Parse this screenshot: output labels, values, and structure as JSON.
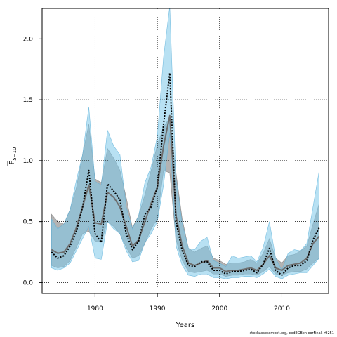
{
  "chart_data": {
    "type": "line",
    "xlabel": "Years",
    "ylabel": "F̄ 5−10",
    "ylabel_main": "F",
    "ylabel_sub": "5−10",
    "xlim": [
      1971.5,
      2017.5
    ],
    "ylim": [
      -0.09,
      2.25
    ],
    "xticks": [
      1980,
      1990,
      2000,
      2010
    ],
    "yticks": [
      0.0,
      0.5,
      1.0,
      1.5,
      2.0
    ],
    "ytick_labels": [
      "0.0",
      "0.5",
      "1.0",
      "1.5",
      "2.0"
    ],
    "grid": true,
    "colors": {
      "gray_band": "#9a9a9a",
      "gray_line": "#6e6e6e",
      "blue_band": "#7ec8ea",
      "dotted_line": "#000000"
    },
    "x": [
      1973,
      1974,
      1975,
      1976,
      1977,
      1978,
      1979,
      1980,
      1981,
      1982,
      1983,
      1984,
      1985,
      1986,
      1987,
      1988,
      1989,
      1990,
      1991,
      1992,
      1993,
      1994,
      1995,
      1996,
      1997,
      1998,
      1999,
      2000,
      2001,
      2002,
      2003,
      2004,
      2005,
      2006,
      2007,
      2008,
      2009,
      2010,
      2011,
      2012,
      2013,
      2014,
      2015,
      2016
    ],
    "series": [
      {
        "style": "gray-band-with-solid-line",
        "values": [
          0.27,
          0.24,
          0.25,
          0.32,
          0.45,
          0.62,
          0.8,
          0.49,
          0.48,
          0.74,
          0.7,
          0.62,
          0.46,
          0.3,
          0.35,
          0.5,
          0.65,
          0.78,
          1.12,
          1.37,
          0.55,
          0.3,
          0.16,
          0.14,
          0.16,
          0.18,
          0.12,
          0.12,
          0.09,
          0.1,
          0.1,
          0.11,
          0.12,
          0.1,
          0.15,
          0.22,
          0.12,
          0.1,
          0.14,
          0.15,
          0.16,
          0.2,
          0.32,
          0.38
        ],
        "lower": [
          0.14,
          0.12,
          0.13,
          0.18,
          0.29,
          0.4,
          0.42,
          0.34,
          0.33,
          0.5,
          0.46,
          0.4,
          0.29,
          0.2,
          0.22,
          0.32,
          0.44,
          0.52,
          0.92,
          0.9,
          0.35,
          0.18,
          0.09,
          0.08,
          0.09,
          0.1,
          0.07,
          0.07,
          0.05,
          0.06,
          0.06,
          0.07,
          0.07,
          0.06,
          0.09,
          0.13,
          0.07,
          0.06,
          0.08,
          0.09,
          0.09,
          0.11,
          0.16,
          0.2
        ],
        "upper": [
          0.56,
          0.5,
          0.48,
          0.6,
          0.78,
          1.05,
          1.3,
          0.85,
          0.82,
          1.1,
          1.02,
          0.92,
          0.7,
          0.45,
          0.55,
          0.72,
          0.92,
          1.13,
          1.28,
          1.35,
          0.9,
          0.52,
          0.28,
          0.25,
          0.28,
          0.3,
          0.2,
          0.18,
          0.15,
          0.16,
          0.16,
          0.17,
          0.19,
          0.16,
          0.24,
          0.36,
          0.2,
          0.16,
          0.22,
          0.23,
          0.26,
          0.3,
          0.48,
          0.65
        ]
      },
      {
        "style": "blue-band-with-dotted-line",
        "values": [
          0.25,
          0.2,
          0.22,
          0.3,
          0.42,
          0.62,
          0.92,
          0.4,
          0.33,
          0.81,
          0.75,
          0.68,
          0.4,
          0.27,
          0.34,
          0.56,
          0.62,
          0.78,
          1.3,
          1.72,
          0.5,
          0.26,
          0.14,
          0.13,
          0.17,
          0.17,
          0.1,
          0.1,
          0.07,
          0.09,
          0.09,
          0.1,
          0.11,
          0.08,
          0.15,
          0.28,
          0.1,
          0.06,
          0.12,
          0.14,
          0.14,
          0.18,
          0.35,
          0.45
        ],
        "lower": [
          0.12,
          0.1,
          0.12,
          0.16,
          0.26,
          0.36,
          0.46,
          0.2,
          0.19,
          0.5,
          0.44,
          0.4,
          0.26,
          0.17,
          0.18,
          0.33,
          0.4,
          0.5,
          0.8,
          1.23,
          0.3,
          0.14,
          0.06,
          0.05,
          0.07,
          0.07,
          0.04,
          0.04,
          0.03,
          0.04,
          0.04,
          0.05,
          0.05,
          0.04,
          0.07,
          0.11,
          0.05,
          0.03,
          0.06,
          0.07,
          0.08,
          0.08,
          0.14,
          0.2
        ],
        "upper": [
          0.52,
          0.44,
          0.48,
          0.6,
          0.84,
          1.05,
          1.44,
          0.83,
          0.8,
          1.25,
          1.12,
          1.05,
          0.62,
          0.44,
          0.55,
          0.82,
          0.95,
          1.2,
          1.85,
          2.27,
          0.85,
          0.48,
          0.28,
          0.27,
          0.34,
          0.37,
          0.18,
          0.16,
          0.13,
          0.22,
          0.2,
          0.21,
          0.22,
          0.17,
          0.29,
          0.5,
          0.2,
          0.1,
          0.24,
          0.27,
          0.26,
          0.32,
          0.62,
          0.92
        ]
      }
    ]
  },
  "credit": "stockassessment.org, codEGBen corFinal, r9251"
}
